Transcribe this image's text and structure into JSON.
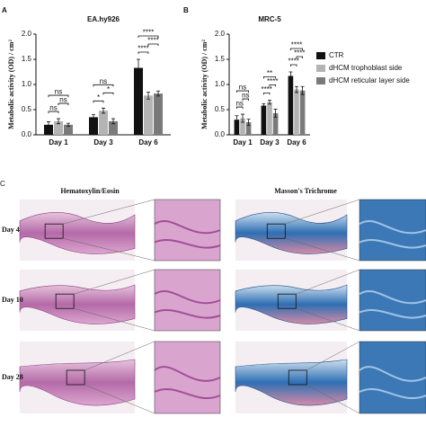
{
  "chart_data": [
    {
      "type": "bar",
      "panel": "A",
      "title": "EA.hy926",
      "ylabel": "Metabolic activity (OD) / cm²",
      "categories": [
        "Day 1",
        "Day 3",
        "Day 6"
      ],
      "series": [
        {
          "name": "CTR",
          "color": "#111111",
          "values": [
            0.2,
            0.35,
            1.33
          ],
          "errors": [
            0.06,
            0.05,
            0.17
          ]
        },
        {
          "name": "dHCM trophoblast side",
          "color": "#b4b4b4",
          "values": [
            0.27,
            0.48,
            0.78
          ],
          "errors": [
            0.05,
            0.05,
            0.07
          ]
        },
        {
          "name": "dHCM reticular layer side",
          "color": "#7a7a7a",
          "values": [
            0.2,
            0.27,
            0.82
          ],
          "errors": [
            0.03,
            0.05,
            0.05
          ]
        }
      ],
      "ylim": [
        0,
        2
      ],
      "yticks": [
        {
          "value": 0,
          "label": "0.0"
        },
        {
          "value": 0.5,
          "label": "0.5"
        },
        {
          "value": 1,
          "label": "1.0"
        },
        {
          "value": 1.5,
          "label": "1.5"
        },
        {
          "value": 2,
          "label": "2.0"
        }
      ],
      "annotations": [
        "ns",
        "ns",
        "ns",
        "ns",
        "*",
        "*",
        "****",
        "****",
        "****"
      ]
    },
    {
      "type": "bar",
      "panel": "B",
      "title": "MRC-5",
      "ylabel": "Metabolic activity (OD) / cm²",
      "categories": [
        "Day 1",
        "Day 3",
        "Day 6"
      ],
      "series": [
        {
          "name": "CTR",
          "color": "#111111",
          "values": [
            0.3,
            0.58,
            1.17
          ],
          "errors": [
            0.08,
            0.04,
            0.08
          ]
        },
        {
          "name": "dHCM trophoblast side",
          "color": "#b4b4b4",
          "values": [
            0.33,
            0.65,
            0.9
          ],
          "errors": [
            0.08,
            0.04,
            0.06
          ]
        },
        {
          "name": "dHCM reticular layer side",
          "color": "#7a7a7a",
          "values": [
            0.25,
            0.43,
            0.88
          ],
          "errors": [
            0.06,
            0.08,
            0.08
          ]
        }
      ],
      "ylim": [
        0,
        2
      ],
      "yticks": [
        {
          "value": 0,
          "label": "0.0"
        },
        {
          "value": 0.5,
          "label": "0.5"
        },
        {
          "value": 1,
          "label": "1.0"
        },
        {
          "value": 1.5,
          "label": "1.5"
        },
        {
          "value": 2,
          "label": "2.0"
        }
      ],
      "annotations": [
        "ns",
        "ns",
        "ns",
        "**",
        "****",
        "****",
        "****",
        "****",
        "****"
      ],
      "legend": true
    }
  ],
  "histology": {
    "panel": "C",
    "stains": [
      "Hematoxylin/Eosin",
      "Masson's Trichrome"
    ],
    "rows": [
      "Day 4",
      "Day 10",
      "Day 28"
    ]
  }
}
